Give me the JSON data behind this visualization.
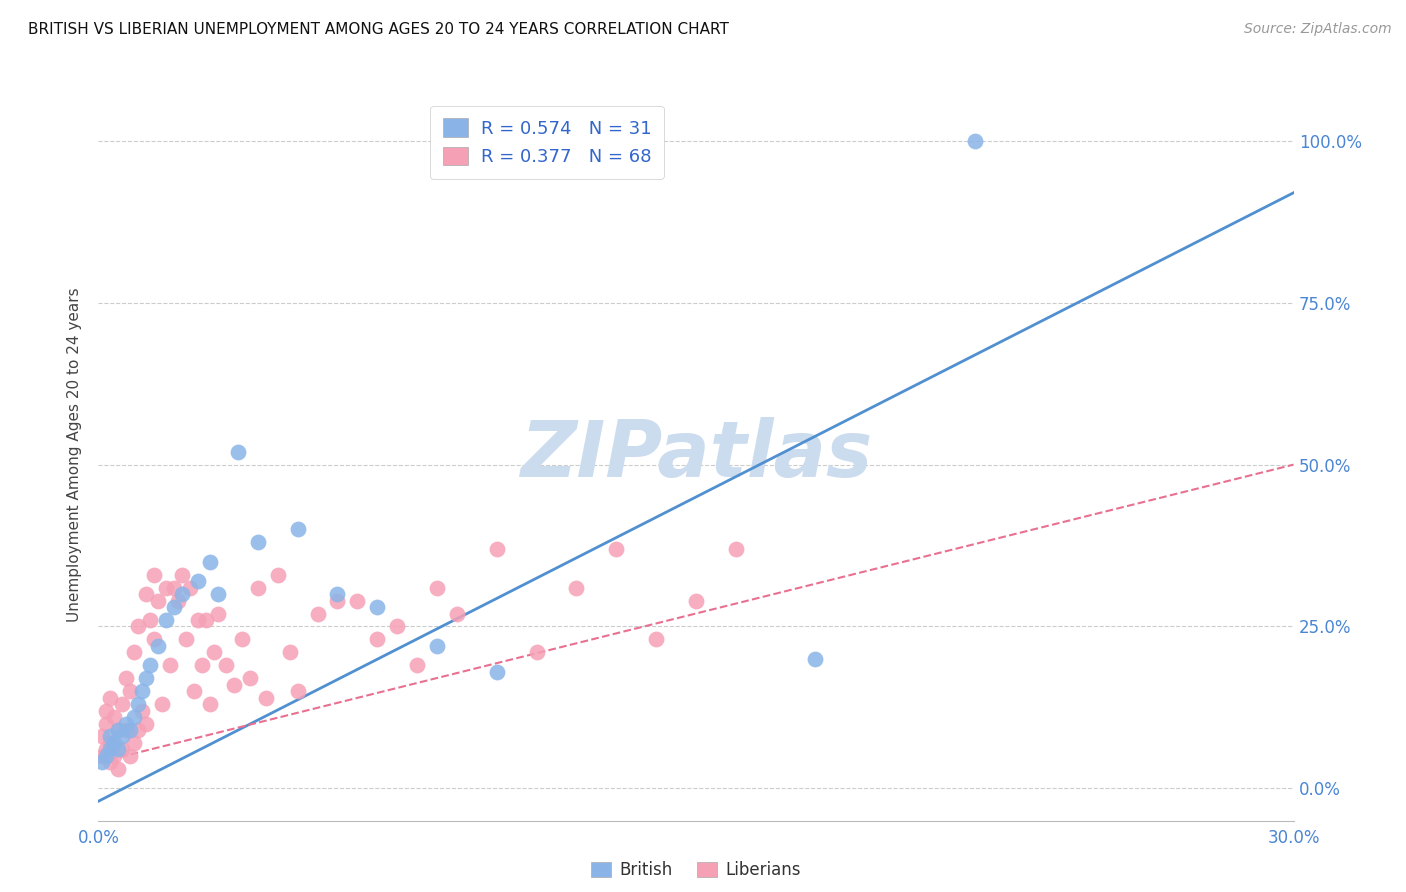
{
  "title": "BRITISH VS LIBERIAN UNEMPLOYMENT AMONG AGES 20 TO 24 YEARS CORRELATION CHART",
  "source": "Source: ZipAtlas.com",
  "ylabel": "Unemployment Among Ages 20 to 24 years",
  "ytick_vals": [
    0.0,
    0.25,
    0.5,
    0.75,
    1.0
  ],
  "ytick_labels": [
    "0.0%",
    "25.0%",
    "50.0%",
    "75.0%",
    "100.0%"
  ],
  "xlim": [
    0.0,
    0.3
  ],
  "ylim": [
    -0.05,
    1.08
  ],
  "british_r": 0.574,
  "british_n": 31,
  "liberian_r": 0.377,
  "liberian_n": 68,
  "british_color": "#8ab4e8",
  "liberian_color": "#f5a0b5",
  "british_line_color": "#5090d0",
  "liberian_line_color": "#e87090",
  "watermark": "ZIPatlas",
  "watermark_color": "#ccdcef",
  "legend_color": "#3366cc",
  "british_line_x0": 0.0,
  "british_line_y0": -0.02,
  "british_line_x1": 0.3,
  "british_line_y1": 0.92,
  "liberian_line_x0": 0.0,
  "liberian_line_y0": 0.04,
  "liberian_line_x1": 0.3,
  "liberian_line_y1": 0.5,
  "british_x": [
    0.001,
    0.002,
    0.003,
    0.003,
    0.004,
    0.005,
    0.005,
    0.006,
    0.007,
    0.008,
    0.009,
    0.01,
    0.011,
    0.012,
    0.013,
    0.015,
    0.017,
    0.019,
    0.021,
    0.025,
    0.028,
    0.03,
    0.035,
    0.04,
    0.05,
    0.06,
    0.07,
    0.085,
    0.1,
    0.18,
    0.22
  ],
  "british_y": [
    0.04,
    0.05,
    0.06,
    0.08,
    0.07,
    0.06,
    0.09,
    0.08,
    0.1,
    0.09,
    0.11,
    0.13,
    0.15,
    0.17,
    0.19,
    0.22,
    0.26,
    0.28,
    0.3,
    0.32,
    0.35,
    0.3,
    0.52,
    0.38,
    0.4,
    0.3,
    0.28,
    0.22,
    0.18,
    0.2,
    1.0
  ],
  "liberian_x": [
    0.001,
    0.001,
    0.002,
    0.002,
    0.002,
    0.003,
    0.003,
    0.003,
    0.004,
    0.004,
    0.005,
    0.005,
    0.006,
    0.006,
    0.007,
    0.007,
    0.008,
    0.008,
    0.009,
    0.009,
    0.01,
    0.01,
    0.011,
    0.012,
    0.012,
    0.013,
    0.014,
    0.014,
    0.015,
    0.016,
    0.017,
    0.018,
    0.019,
    0.02,
    0.021,
    0.022,
    0.023,
    0.024,
    0.025,
    0.026,
    0.027,
    0.028,
    0.029,
    0.03,
    0.032,
    0.034,
    0.036,
    0.038,
    0.04,
    0.042,
    0.045,
    0.048,
    0.05,
    0.055,
    0.06,
    0.065,
    0.07,
    0.075,
    0.08,
    0.085,
    0.09,
    0.1,
    0.11,
    0.12,
    0.13,
    0.14,
    0.15,
    0.16
  ],
  "liberian_y": [
    0.05,
    0.08,
    0.06,
    0.1,
    0.12,
    0.04,
    0.07,
    0.14,
    0.05,
    0.11,
    0.03,
    0.09,
    0.06,
    0.13,
    0.09,
    0.17,
    0.05,
    0.15,
    0.07,
    0.21,
    0.09,
    0.25,
    0.12,
    0.1,
    0.3,
    0.26,
    0.23,
    0.33,
    0.29,
    0.13,
    0.31,
    0.19,
    0.31,
    0.29,
    0.33,
    0.23,
    0.31,
    0.15,
    0.26,
    0.19,
    0.26,
    0.13,
    0.21,
    0.27,
    0.19,
    0.16,
    0.23,
    0.17,
    0.31,
    0.14,
    0.33,
    0.21,
    0.15,
    0.27,
    0.29,
    0.29,
    0.23,
    0.25,
    0.19,
    0.31,
    0.27,
    0.37,
    0.21,
    0.31,
    0.37,
    0.23,
    0.29,
    0.37
  ]
}
